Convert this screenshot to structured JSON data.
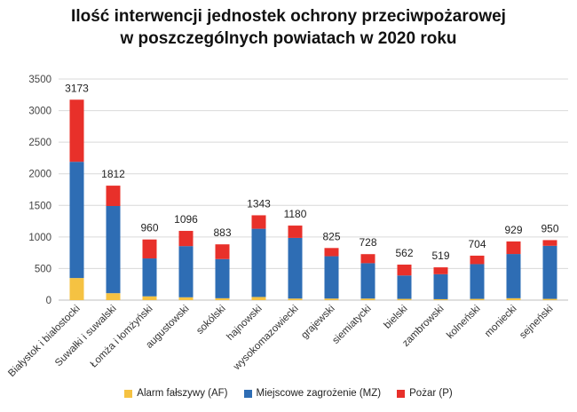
{
  "title_line1": "Ilość interwencji jednostek ochrony przeciwpożarowej",
  "title_line2": "w poszczególnych powiatach w 2020 roku",
  "chart_data": {
    "type": "bar",
    "stacked": true,
    "title": "Ilość interwencji jednostek ochrony przeciwpożarowej w poszczególnych powiatach w 2020 roku",
    "xlabel": "",
    "ylabel": "",
    "ylim": [
      0,
      3500
    ],
    "yticks": [
      0,
      500,
      1000,
      1500,
      2000,
      2500,
      3000,
      3500
    ],
    "grid": true,
    "legend_position": "bottom",
    "categories": [
      "Białystok i białostocki",
      "Suwałki i suwalski",
      "Łomża i łomżyński",
      "augustowski",
      "sokólski",
      "hajnowski",
      "wysokomazowiecki",
      "grajewski",
      "siemiatycki",
      "bielski",
      "zambrowski",
      "kolneński",
      "moniecki",
      "sejneński"
    ],
    "series": [
      {
        "name": "Alarm fałszywy (AF)",
        "color": "#F5C242",
        "values": [
          350,
          110,
          60,
          45,
          30,
          50,
          25,
          25,
          25,
          20,
          15,
          20,
          30,
          20
        ]
      },
      {
        "name": "Miejscowe zagrożenie (MZ)",
        "color": "#2E6DB4",
        "values": [
          1840,
          1380,
          600,
          810,
          620,
          1080,
          960,
          670,
          560,
          370,
          395,
          550,
          700,
          840
        ]
      },
      {
        "name": "Pożar (P)",
        "color": "#E8302A",
        "values": [
          983,
          322,
          300,
          241,
          233,
          213,
          195,
          130,
          143,
          172,
          109,
          134,
          199,
          90
        ]
      }
    ],
    "totals": [
      3173,
      1812,
      960,
      1096,
      883,
      1343,
      1180,
      825,
      728,
      562,
      519,
      704,
      929,
      950
    ]
  }
}
